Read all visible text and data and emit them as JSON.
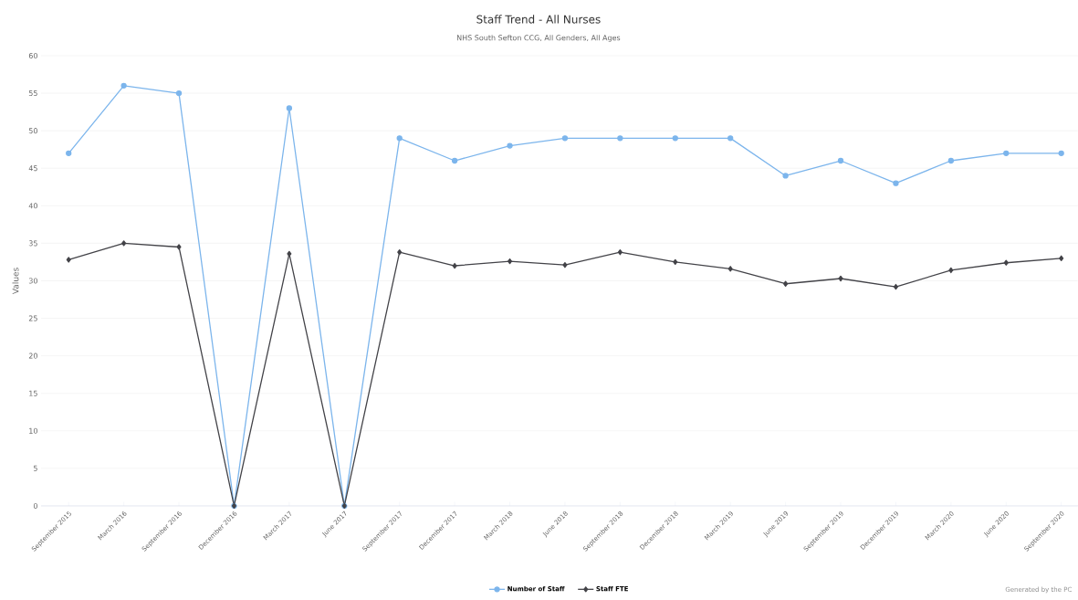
{
  "chart_data": {
    "type": "line",
    "title": "Staff Trend - All Nurses",
    "subtitle": "NHS South Sefton CCG, All Genders, All Ages",
    "ylabel": "Values",
    "categories": [
      "September 2015",
      "March 2016",
      "September 2016",
      "December 2016",
      "March 2017",
      "June 2017",
      "September 2017",
      "December 2017",
      "March 2018",
      "June 2018",
      "September 2018",
      "December 2018",
      "March 2019",
      "June 2019",
      "September 2019",
      "December 2019",
      "March 2020",
      "June 2020",
      "September 2020"
    ],
    "series": [
      {
        "name": "Number of Staff",
        "color": "#7cb5ec",
        "marker": "circle",
        "values": [
          47,
          56,
          55,
          0,
          53,
          0,
          49,
          46,
          48,
          49,
          49,
          49,
          49,
          44,
          46,
          43,
          46,
          47,
          47
        ]
      },
      {
        "name": "Staff FTE",
        "color": "#434348",
        "marker": "diamond",
        "values": [
          32.8,
          35.0,
          34.5,
          0,
          33.6,
          0,
          33.8,
          32.0,
          32.6,
          32.1,
          33.8,
          32.5,
          31.6,
          29.6,
          30.3,
          29.2,
          31.4,
          32.4,
          33.0
        ]
      }
    ],
    "ylim": [
      0,
      60
    ],
    "yticks": [
      0,
      5,
      10,
      15,
      20,
      25,
      30,
      35,
      40,
      45,
      50,
      55,
      60
    ],
    "grid": "y",
    "legend": "bottom",
    "annotations": [
      "Generated by the PC"
    ]
  }
}
